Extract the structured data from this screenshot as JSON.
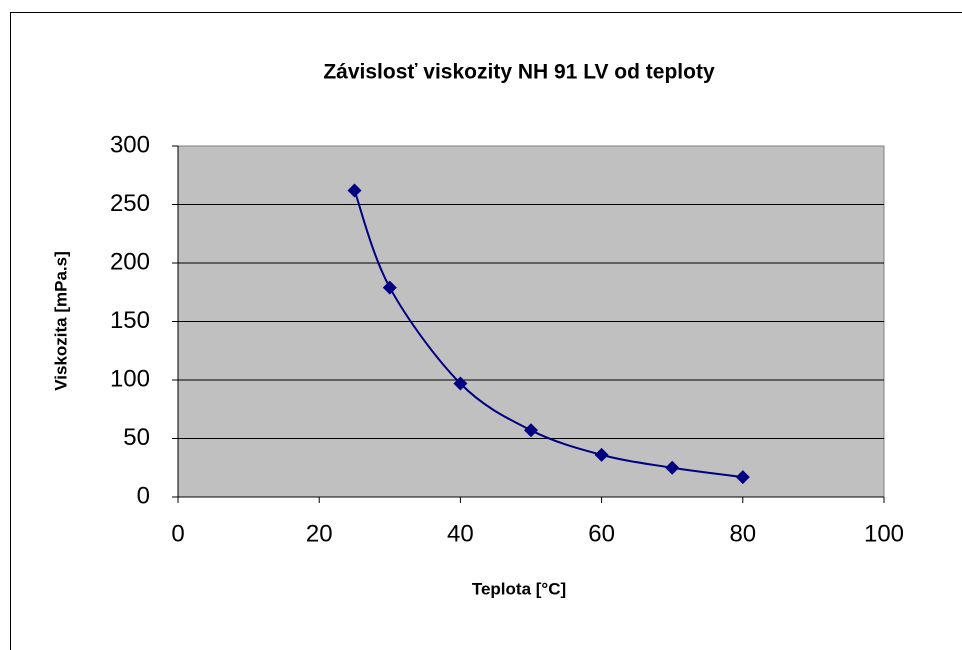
{
  "chart_data": {
    "type": "scatter",
    "title": "Závislosť viskozity NH 91 LV od teploty",
    "xlabel": "Teplota [°C]",
    "ylabel": "Viskozita  [mPa.s]",
    "series": [
      {
        "color": "#000080",
        "x": [
          25,
          30,
          40,
          50,
          60,
          70,
          80
        ],
        "values": [
          262,
          179,
          97,
          57,
          36,
          25,
          17
        ]
      }
    ],
    "xlim": [
      0,
      100
    ],
    "xticks": [
      0,
      20,
      40,
      60,
      80,
      100
    ],
    "ylim": [
      0,
      300
    ],
    "yticks": [
      0,
      50,
      100,
      150,
      200,
      250,
      300
    ],
    "grid": true,
    "smooth": true
  }
}
